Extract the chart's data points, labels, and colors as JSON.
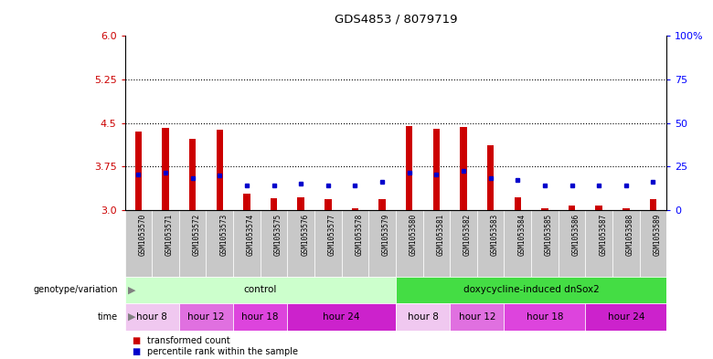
{
  "title": "GDS4853 / 8079719",
  "samples": [
    "GSM1053570",
    "GSM1053571",
    "GSM1053572",
    "GSM1053573",
    "GSM1053574",
    "GSM1053575",
    "GSM1053576",
    "GSM1053577",
    "GSM1053578",
    "GSM1053579",
    "GSM1053580",
    "GSM1053581",
    "GSM1053582",
    "GSM1053583",
    "GSM1053584",
    "GSM1053585",
    "GSM1053586",
    "GSM1053587",
    "GSM1053588",
    "GSM1053589"
  ],
  "red_values": [
    4.35,
    4.42,
    4.22,
    4.38,
    3.28,
    3.2,
    3.22,
    3.18,
    3.03,
    3.18,
    4.45,
    4.4,
    4.43,
    4.12,
    3.22,
    3.03,
    3.08,
    3.08,
    3.03,
    3.18
  ],
  "blue_values": [
    3.62,
    3.65,
    3.55,
    3.6,
    3.42,
    3.42,
    3.45,
    3.42,
    3.42,
    3.48,
    3.65,
    3.62,
    3.68,
    3.55,
    3.52,
    3.42,
    3.42,
    3.42,
    3.42,
    3.48
  ],
  "ylim": [
    3.0,
    6.0
  ],
  "yticks_left": [
    3.0,
    3.75,
    4.5,
    5.25,
    6.0
  ],
  "yticks_right": [
    0,
    25,
    50,
    75,
    100
  ],
  "hlines": [
    3.75,
    4.5,
    5.25
  ],
  "genotype_groups": [
    {
      "label": "control",
      "start": 0,
      "end": 10,
      "color": "#ccffcc"
    },
    {
      "label": "doxycycline-induced dnSox2",
      "start": 10,
      "end": 20,
      "color": "#44dd44"
    }
  ],
  "time_groups": [
    {
      "label": "hour 8",
      "start": 0,
      "end": 2,
      "color": "#f0c8f0"
    },
    {
      "label": "hour 12",
      "start": 2,
      "end": 4,
      "color": "#e070e0"
    },
    {
      "label": "hour 18",
      "start": 4,
      "end": 6,
      "color": "#dd44dd"
    },
    {
      "label": "hour 24",
      "start": 6,
      "end": 10,
      "color": "#cc22cc"
    },
    {
      "label": "hour 8",
      "start": 10,
      "end": 12,
      "color": "#f0c8f0"
    },
    {
      "label": "hour 12",
      "start": 12,
      "end": 14,
      "color": "#e070e0"
    },
    {
      "label": "hour 18",
      "start": 14,
      "end": 17,
      "color": "#dd44dd"
    },
    {
      "label": "hour 24",
      "start": 17,
      "end": 20,
      "color": "#cc22cc"
    }
  ],
  "red_color": "#cc0000",
  "blue_color": "#0000cc",
  "sample_bg_color": "#c8c8c8",
  "legend_red": "transformed count",
  "legend_blue": "percentile rank within the sample",
  "bar_width": 0.25
}
